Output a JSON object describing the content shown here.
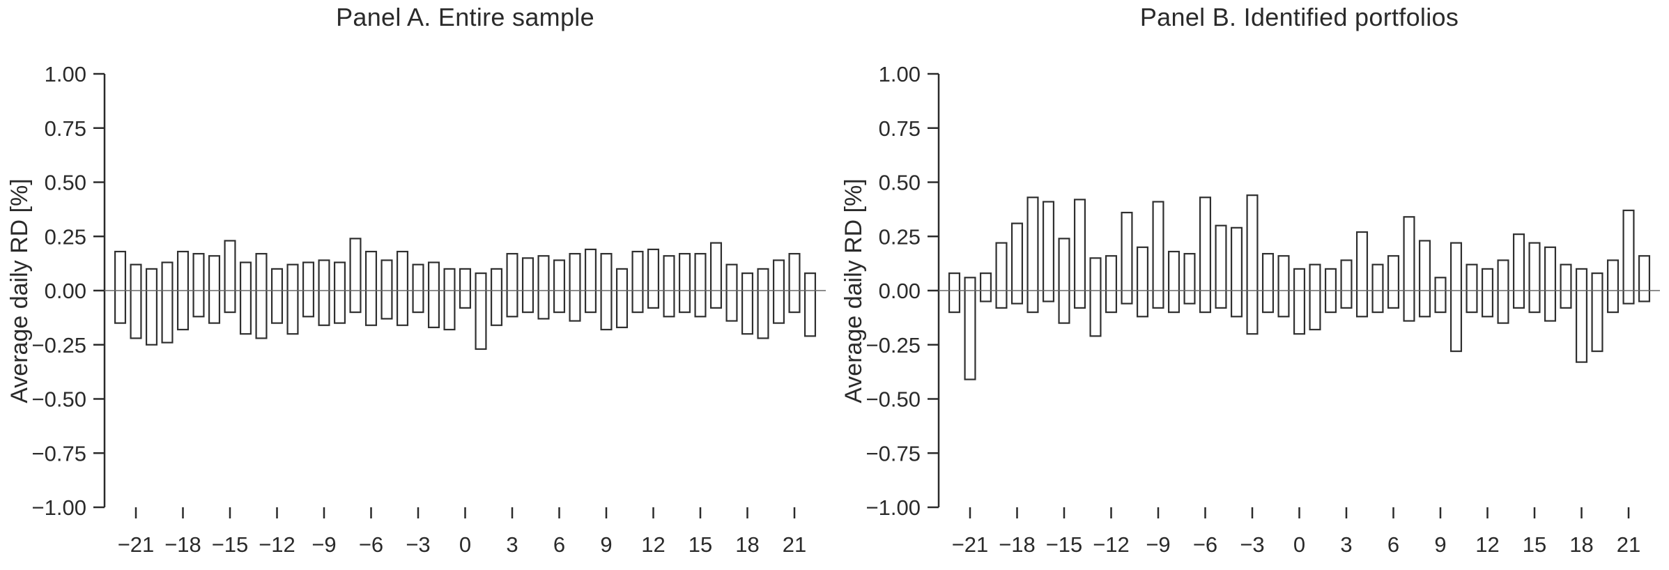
{
  "colors": {
    "background": "#ffffff",
    "bar_outline": "#2f2f2f",
    "bar_fill": "#ffffff",
    "axis": "#2a2a2a",
    "zero_line": "#666666",
    "text": "#2a2a2a"
  },
  "chart_data": [
    {
      "type": "bar",
      "subtype": "floating-range-bars-hollow",
      "title": "Panel A. Entire sample",
      "xlabel": "",
      "ylabel": "Average daily RD [%]",
      "ylim": [
        -1.0,
        1.0
      ],
      "grid": false,
      "legend": "none",
      "y_ticks": [
        {
          "value": 1.0,
          "label": "1.00"
        },
        {
          "value": 0.75,
          "label": "0.75"
        },
        {
          "value": 0.5,
          "label": "0.50"
        },
        {
          "value": 0.25,
          "label": "0.25"
        },
        {
          "value": 0.0,
          "label": "0.00"
        },
        {
          "value": -0.25,
          "label": "−0.25"
        },
        {
          "value": -0.5,
          "label": "−0.50"
        },
        {
          "value": -0.75,
          "label": "−0.75"
        },
        {
          "value": -1.0,
          "label": "−1.00"
        }
      ],
      "x_ticks": [
        {
          "value": -21,
          "label": "−21"
        },
        {
          "value": -18,
          "label": "−18"
        },
        {
          "value": -15,
          "label": "−15"
        },
        {
          "value": -12,
          "label": "−12"
        },
        {
          "value": -9,
          "label": "−9"
        },
        {
          "value": -6,
          "label": "−6"
        },
        {
          "value": -3,
          "label": "−3"
        },
        {
          "value": 0,
          "label": "0"
        },
        {
          "value": 3,
          "label": "3"
        },
        {
          "value": 6,
          "label": "6"
        },
        {
          "value": 9,
          "label": "9"
        },
        {
          "value": 12,
          "label": "12"
        },
        {
          "value": 15,
          "label": "15"
        },
        {
          "value": 18,
          "label": "18"
        },
        {
          "value": 21,
          "label": "21"
        }
      ],
      "x": [
        -22,
        -21,
        -20,
        -19,
        -18,
        -17,
        -16,
        -15,
        -14,
        -13,
        -12,
        -11,
        -10,
        -9,
        -8,
        -7,
        -6,
        -5,
        -4,
        -3,
        -2,
        -1,
        0,
        1,
        2,
        3,
        4,
        5,
        6,
        7,
        8,
        9,
        10,
        11,
        12,
        13,
        14,
        15,
        16,
        17,
        18,
        19,
        20,
        21,
        22
      ],
      "low": [
        -0.15,
        -0.22,
        -0.25,
        -0.24,
        -0.18,
        -0.12,
        -0.15,
        -0.1,
        -0.2,
        -0.22,
        -0.15,
        -0.2,
        -0.12,
        -0.16,
        -0.15,
        -0.1,
        -0.16,
        -0.13,
        -0.16,
        -0.1,
        -0.17,
        -0.18,
        -0.08,
        -0.27,
        -0.16,
        -0.12,
        -0.1,
        -0.13,
        -0.1,
        -0.14,
        -0.1,
        -0.18,
        -0.17,
        -0.1,
        -0.08,
        -0.12,
        -0.1,
        -0.12,
        -0.08,
        -0.14,
        -0.2,
        -0.22,
        -0.15,
        -0.1,
        -0.21
      ],
      "high": [
        0.18,
        0.12,
        0.1,
        0.13,
        0.18,
        0.17,
        0.16,
        0.23,
        0.13,
        0.17,
        0.1,
        0.12,
        0.13,
        0.14,
        0.13,
        0.24,
        0.18,
        0.14,
        0.18,
        0.12,
        0.13,
        0.1,
        0.1,
        0.08,
        0.1,
        0.17,
        0.15,
        0.16,
        0.14,
        0.17,
        0.19,
        0.17,
        0.1,
        0.18,
        0.19,
        0.16,
        0.17,
        0.17,
        0.22,
        0.12,
        0.08,
        0.1,
        0.14,
        0.17,
        0.08
      ]
    },
    {
      "type": "bar",
      "subtype": "floating-range-bars-hollow",
      "title": "Panel B. Identified portfolios",
      "xlabel": "",
      "ylabel": "Average daily RD [%]",
      "ylim": [
        -1.0,
        1.0
      ],
      "grid": false,
      "legend": "none",
      "y_ticks": [
        {
          "value": 1.0,
          "label": "1.00"
        },
        {
          "value": 0.75,
          "label": "0.75"
        },
        {
          "value": 0.5,
          "label": "0.50"
        },
        {
          "value": 0.25,
          "label": "0.25"
        },
        {
          "value": 0.0,
          "label": "0.00"
        },
        {
          "value": -0.25,
          "label": "−0.25"
        },
        {
          "value": -0.5,
          "label": "−0.50"
        },
        {
          "value": -0.75,
          "label": "−0.75"
        },
        {
          "value": -1.0,
          "label": "−1.00"
        }
      ],
      "x_ticks": [
        {
          "value": -21,
          "label": "−21"
        },
        {
          "value": -18,
          "label": "−18"
        },
        {
          "value": -15,
          "label": "−15"
        },
        {
          "value": -12,
          "label": "−12"
        },
        {
          "value": -9,
          "label": "−9"
        },
        {
          "value": -6,
          "label": "−6"
        },
        {
          "value": -3,
          "label": "−3"
        },
        {
          "value": 0,
          "label": "0"
        },
        {
          "value": 3,
          "label": "3"
        },
        {
          "value": 6,
          "label": "6"
        },
        {
          "value": 9,
          "label": "9"
        },
        {
          "value": 12,
          "label": "12"
        },
        {
          "value": 15,
          "label": "15"
        },
        {
          "value": 18,
          "label": "18"
        },
        {
          "value": 21,
          "label": "21"
        }
      ],
      "x": [
        -22,
        -21,
        -20,
        -19,
        -18,
        -17,
        -16,
        -15,
        -14,
        -13,
        -12,
        -11,
        -10,
        -9,
        -8,
        -7,
        -6,
        -5,
        -4,
        -3,
        -2,
        -1,
        0,
        1,
        2,
        3,
        4,
        5,
        6,
        7,
        8,
        9,
        10,
        11,
        12,
        13,
        14,
        15,
        16,
        17,
        18,
        19,
        20,
        21,
        22
      ],
      "low": [
        -0.1,
        -0.41,
        -0.05,
        -0.08,
        -0.06,
        -0.1,
        -0.05,
        -0.15,
        -0.08,
        -0.21,
        -0.1,
        -0.06,
        -0.12,
        -0.08,
        -0.1,
        -0.06,
        -0.1,
        -0.08,
        -0.12,
        -0.2,
        -0.1,
        -0.12,
        -0.2,
        -0.18,
        -0.1,
        -0.08,
        -0.12,
        -0.1,
        -0.08,
        -0.14,
        -0.12,
        -0.1,
        -0.28,
        -0.1,
        -0.12,
        -0.15,
        -0.08,
        -0.1,
        -0.14,
        -0.08,
        -0.33,
        -0.28,
        -0.1,
        -0.06,
        -0.05
      ],
      "high": [
        0.08,
        0.06,
        0.08,
        0.22,
        0.31,
        0.43,
        0.41,
        0.24,
        0.42,
        0.15,
        0.16,
        0.36,
        0.2,
        0.41,
        0.18,
        0.17,
        0.43,
        0.3,
        0.29,
        0.44,
        0.17,
        0.16,
        0.1,
        0.12,
        0.1,
        0.14,
        0.27,
        0.12,
        0.16,
        0.34,
        0.23,
        0.06,
        0.22,
        0.12,
        0.1,
        0.14,
        0.26,
        0.22,
        0.2,
        0.12,
        0.1,
        0.08,
        0.14,
        0.37,
        0.16
      ]
    }
  ]
}
